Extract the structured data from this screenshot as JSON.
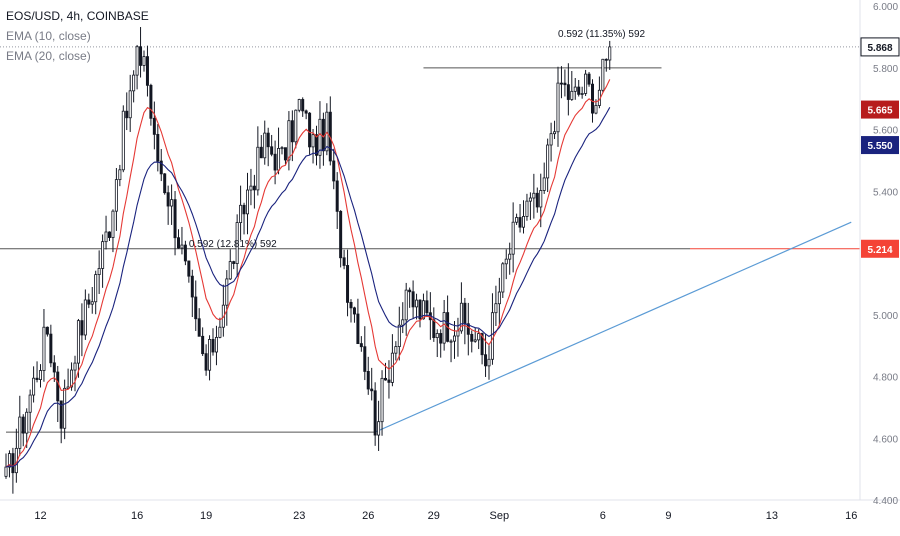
{
  "legend": {
    "symbol": "EOS/USD, 4h, COINBASE",
    "ema10": "EMA (10, close)",
    "ema20": "EMA (20, close)"
  },
  "colors": {
    "up": "#131722",
    "down": "#131722",
    "ema10": "#e53935",
    "ema20": "#1a237e",
    "trendline": "#5b9bd5",
    "price_tag": "#131722",
    "ema10_tag": "#b71c1c",
    "ema20_tag": "#1a237e",
    "level_tag": "#f44336"
  },
  "chart_data": {
    "type": "candlestick",
    "title": "EOS/USD, 4h, COINBASE",
    "ylim": [
      4.4,
      6.02
    ],
    "y_ticks": [
      "6.000",
      "5.800",
      "5.600",
      "5.400",
      "5.000",
      "4.800",
      "4.600",
      "4.400"
    ],
    "x_ticks": [
      "12",
      "16",
      "19",
      "23",
      "26",
      "29",
      "Sep",
      "6",
      "9",
      "13",
      "16"
    ],
    "x_tick_index": [
      10,
      38,
      58,
      85,
      105,
      124,
      143,
      173,
      192,
      222,
      245
    ],
    "candle_count": 176,
    "path": [
      [
        0,
        4.46
      ],
      [
        4,
        4.62
      ],
      [
        8,
        4.78
      ],
      [
        12,
        4.95
      ],
      [
        16,
        4.68
      ],
      [
        20,
        4.9
      ],
      [
        25,
        5.08
      ],
      [
        30,
        5.3
      ],
      [
        34,
        5.6
      ],
      [
        38,
        5.82
      ],
      [
        40,
        5.85
      ],
      [
        43,
        5.55
      ],
      [
        48,
        5.35
      ],
      [
        51,
        5.2
      ],
      [
        55,
        4.95
      ],
      [
        58,
        4.82
      ],
      [
        61,
        4.95
      ],
      [
        65,
        5.15
      ],
      [
        70,
        5.4
      ],
      [
        75,
        5.55
      ],
      [
        80,
        5.5
      ],
      [
        85,
        5.68
      ],
      [
        89,
        5.55
      ],
      [
        93,
        5.6
      ],
      [
        96,
        5.3
      ],
      [
        99,
        5.1
      ],
      [
        103,
        4.92
      ],
      [
        107,
        4.66
      ],
      [
        110,
        4.78
      ],
      [
        113,
        4.95
      ],
      [
        117,
        5.05
      ],
      [
        121,
        5.0
      ],
      [
        124,
        4.96
      ],
      [
        128,
        4.97
      ],
      [
        132,
        4.98
      ],
      [
        136,
        4.92
      ],
      [
        139,
        4.85
      ],
      [
        143,
        5.08
      ],
      [
        147,
        5.25
      ],
      [
        151,
        5.35
      ],
      [
        155,
        5.35
      ],
      [
        158,
        5.6
      ],
      [
        161,
        5.75
      ],
      [
        164,
        5.7
      ],
      [
        168,
        5.74
      ],
      [
        171,
        5.7
      ],
      [
        175,
        5.85
      ]
    ],
    "price_levels": [
      {
        "name": "current-price",
        "value": 5.868,
        "label": "5.868"
      },
      {
        "name": "ema10-value",
        "value": 5.665,
        "label": "5.665"
      },
      {
        "name": "ema20-value",
        "value": 5.55,
        "label": "5.550"
      },
      {
        "name": "horizontal-level",
        "value": 5.214,
        "label": "5.214"
      }
    ],
    "horizontal_lines": [
      {
        "name": "support-line",
        "value": 4.62,
        "x_from": 0,
        "x_to": 107
      },
      {
        "name": "target-line",
        "value": 5.8,
        "x_from": 121,
        "x_to": 190
      }
    ],
    "trendline": {
      "from": [
        107,
        4.62
      ],
      "to": [
        245,
        5.3
      ]
    },
    "annotations": [
      {
        "name": "measure-label-1",
        "text": "0.592 (12.81%) 592",
        "x": 53,
        "y": 5.22
      },
      {
        "name": "measure-label-2",
        "text": "0.592 (11.35%) 592",
        "x": 160,
        "y": 5.9
      }
    ]
  }
}
